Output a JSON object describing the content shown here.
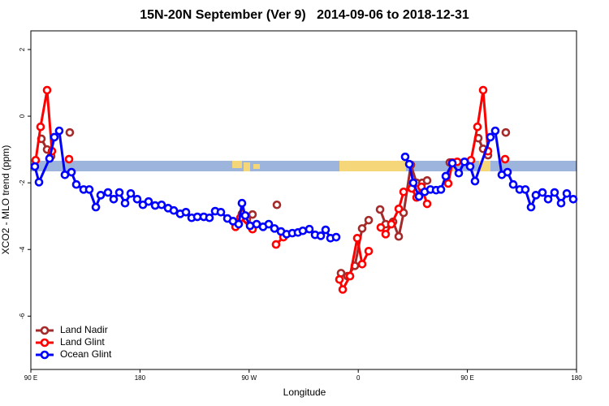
{
  "chart_data": {
    "type": "line",
    "title": "15N-20N September (Ver 9)   2014-09-06 to 2018-12-31",
    "xlabel": "Longitude",
    "ylabel": "XCO2 - MLO trend (ppm)",
    "xlim": [
      90,
      540
    ],
    "ylim": [
      -7.6,
      2.56
    ],
    "xticks": [
      {
        "value": 90,
        "label": "90 E"
      },
      {
        "value": 180,
        "label": "180"
      },
      {
        "value": 270,
        "label": "90 W"
      },
      {
        "value": 360,
        "label": "0"
      },
      {
        "value": 450,
        "label": "90 E"
      },
      {
        "value": 540,
        "label": "180"
      }
    ],
    "yticks": [
      2,
      0,
      -2,
      -4,
      -6
    ],
    "legend": "bottom-left",
    "series": [
      {
        "name": "Land Nadir",
        "color": "#a52a2a",
        "x": [
          98.7,
          103.4,
          106.7,
          null,
          122.1,
          null,
          264.1,
          268.1,
          272.8,
          null,
          292.9,
          null,
          345.8,
          351.2,
          357.2,
          363.2,
          368.6,
          null,
          378,
          382.6,
          388.7,
          393.4,
          397.4,
          403.4,
          408.1,
          412.8,
          416.8,
          null,
          435.5,
          null,
          459,
          463,
          467,
          null,
          481.7
        ],
        "values": [
          -0.68,
          -1.0,
          -1.2,
          null,
          -0.49,
          null,
          -2.93,
          -3.1,
          -2.95,
          null,
          -2.66,
          null,
          -4.71,
          -4.8,
          -4.49,
          -3.37,
          -3.12,
          null,
          -2.8,
          -3.24,
          -3.17,
          -3.61,
          -2.9,
          -1.46,
          -2.0,
          -2.0,
          -1.93,
          null,
          -1.39,
          null,
          -0.66,
          -0.98,
          -1.17,
          null,
          -0.49
        ]
      },
      {
        "name": "Land Glint",
        "color": "#ff0000",
        "x": [
          94,
          98,
          103.4,
          107.4,
          null,
          121.5,
          null,
          258.8,
          262.8,
          272.8,
          null,
          292.2,
          298.3,
          null,
          344.5,
          347.2,
          353.2,
          359.2,
          363.2,
          368.6,
          null,
          378.6,
          382.6,
          387.3,
          393.4,
          397.4,
          404.1,
          408.1,
          412.1,
          416.8,
          null,
          434.2,
          437.6,
          441.6,
          453,
          458.3,
          463,
          467,
          null,
          481.1
        ],
        "values": [
          -1.32,
          -0.32,
          0.78,
          -1.05,
          null,
          -1.29,
          null,
          -3.32,
          -3.05,
          -3.39,
          null,
          -3.85,
          -3.63,
          null,
          -4.9,
          -5.2,
          -4.8,
          -3.66,
          -4.44,
          -4.05,
          null,
          -3.34,
          -3.54,
          -3.24,
          -2.78,
          -2.27,
          -2.17,
          -2.44,
          -2.12,
          -2.63,
          null,
          -2.02,
          -1.39,
          -1.37,
          -1.32,
          -0.32,
          0.78,
          -1.05,
          null,
          -1.29
        ]
      },
      {
        "name": "Ocean Glint",
        "color": "#0000ff",
        "x": [
          93.3,
          96.7,
          105.4,
          109.4,
          113.4,
          118.1,
          123.5,
          127.5,
          133.5,
          138.2,
          143.6,
          147.6,
          153.6,
          158.3,
          163,
          167.7,
          172.4,
          177.7,
          182.4,
          187.1,
          192.5,
          197.8,
          203.2,
          207.9,
          213.2,
          217.9,
          222.6,
          227.3,
          232.6,
          237.3,
          242,
          246.7,
          252.1,
          256.7,
          261.4,
          264.1,
          266.8,
          270.8,
          276.2,
          281.5,
          286.2,
          290.9,
          296.3,
          300.9,
          305.6,
          310.3,
          314.3,
          319.7,
          324.4,
          329.1,
          333.1,
          337.1,
          341.8,
          null,
          398.7,
          402.1,
          405.4,
          410.1,
          414.8,
          419.5,
          424.2,
          428.2,
          432.2,
          437.6,
          442.9,
          447.6,
          452.3,
          456.3,
          469,
          473,
          478.4,
          483.1,
          487.8,
          493.1,
          497.8,
          502.5,
          506.5,
          511.9,
          516.6,
          521.9,
          527.3,
          532,
          537.3
        ],
        "values": [
          -1.51,
          -1.98,
          -1.27,
          -0.63,
          -0.44,
          -1.76,
          -1.68,
          -2.05,
          -2.2,
          -2.2,
          -2.73,
          -2.37,
          -2.29,
          -2.49,
          -2.29,
          -2.61,
          -2.32,
          -2.49,
          -2.66,
          -2.56,
          -2.68,
          -2.66,
          -2.76,
          -2.83,
          -2.93,
          -2.88,
          -3.05,
          -3.02,
          -3.02,
          -3.05,
          -2.85,
          -2.88,
          -3.07,
          -3.15,
          -3.24,
          -2.61,
          -2.98,
          -3.29,
          -3.24,
          -3.32,
          -3.24,
          -3.37,
          -3.46,
          -3.54,
          -3.51,
          -3.49,
          -3.44,
          -3.39,
          -3.56,
          -3.59,
          -3.41,
          -3.66,
          -3.63,
          null,
          -1.22,
          -1.44,
          -2.0,
          -2.41,
          -2.27,
          -2.2,
          -2.22,
          -2.2,
          -1.8,
          -1.41,
          -1.71,
          -1.37,
          -1.51,
          -1.95,
          -0.63,
          -0.44,
          -1.76,
          -1.68,
          -2.05,
          -2.2,
          -2.2,
          -2.73,
          -2.37,
          -2.29,
          -2.49,
          -2.29,
          -2.61,
          -2.32,
          -2.49
        ]
      }
    ]
  }
}
